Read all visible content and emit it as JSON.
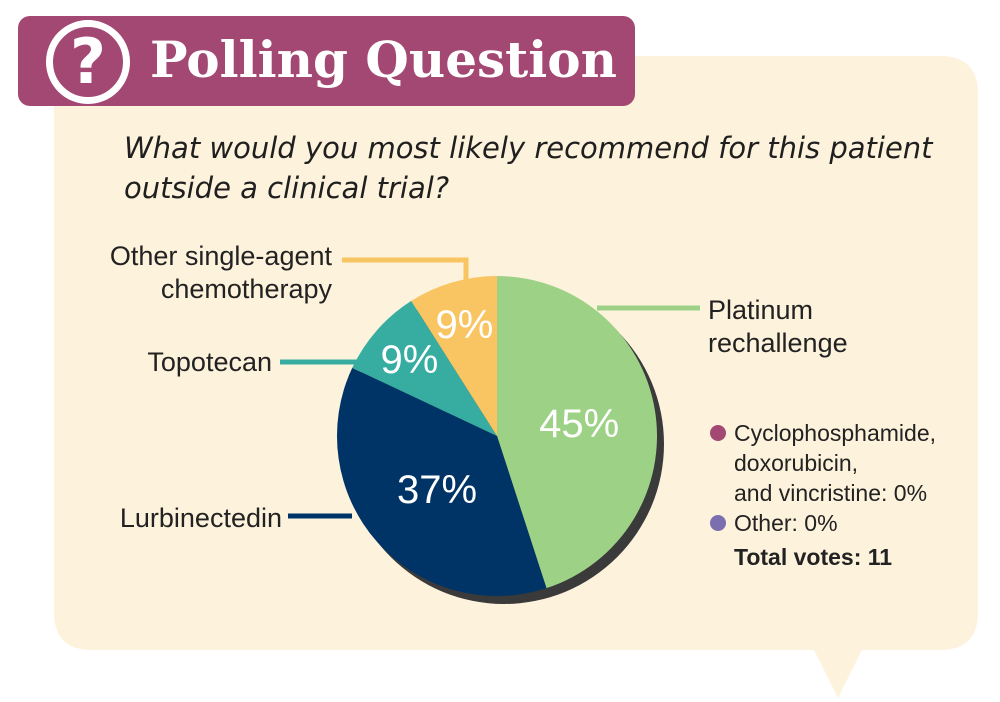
{
  "header": {
    "icon": "question-icon",
    "icon_glyph": "?",
    "title": "Polling Question"
  },
  "question": "What would you most likely recommend for this patient outside a clinical trial?",
  "colors": {
    "header_bg": "#a34873",
    "bubble_bg": "#fdf2dc",
    "pie_shadow": "#3a3a3a"
  },
  "chart_data": {
    "type": "pie",
    "title": "",
    "slices": [
      {
        "label": "Platinum rechallenge",
        "label_lines": [
          "Platinum",
          "rechallenge"
        ],
        "value": 45,
        "value_label": "45%",
        "color": "#9dd186"
      },
      {
        "label": "Lurbinectedin",
        "label_lines": [
          "Lurbinectedin"
        ],
        "value": 37,
        "value_label": "37%",
        "color": "#003466"
      },
      {
        "label": "Topotecan",
        "label_lines": [
          "Topotecan"
        ],
        "value": 9,
        "value_label": "9%",
        "color": "#36ada0"
      },
      {
        "label": "Other single-agent chemotherapy",
        "label_lines": [
          "Other single-agent",
          "chemotherapy"
        ],
        "value": 9,
        "value_label": "9%",
        "color": "#f9c462"
      }
    ],
    "legend": [
      {
        "label_lines": [
          "Cyclophosphamide,",
          "doxorubicin,",
          "and vincristine: 0%"
        ],
        "value": 0,
        "color": "#a34873"
      },
      {
        "label_lines": [
          "Other: 0%"
        ],
        "value": 0,
        "color": "#7c6fb0"
      }
    ],
    "total_label": "Total votes: 11"
  }
}
